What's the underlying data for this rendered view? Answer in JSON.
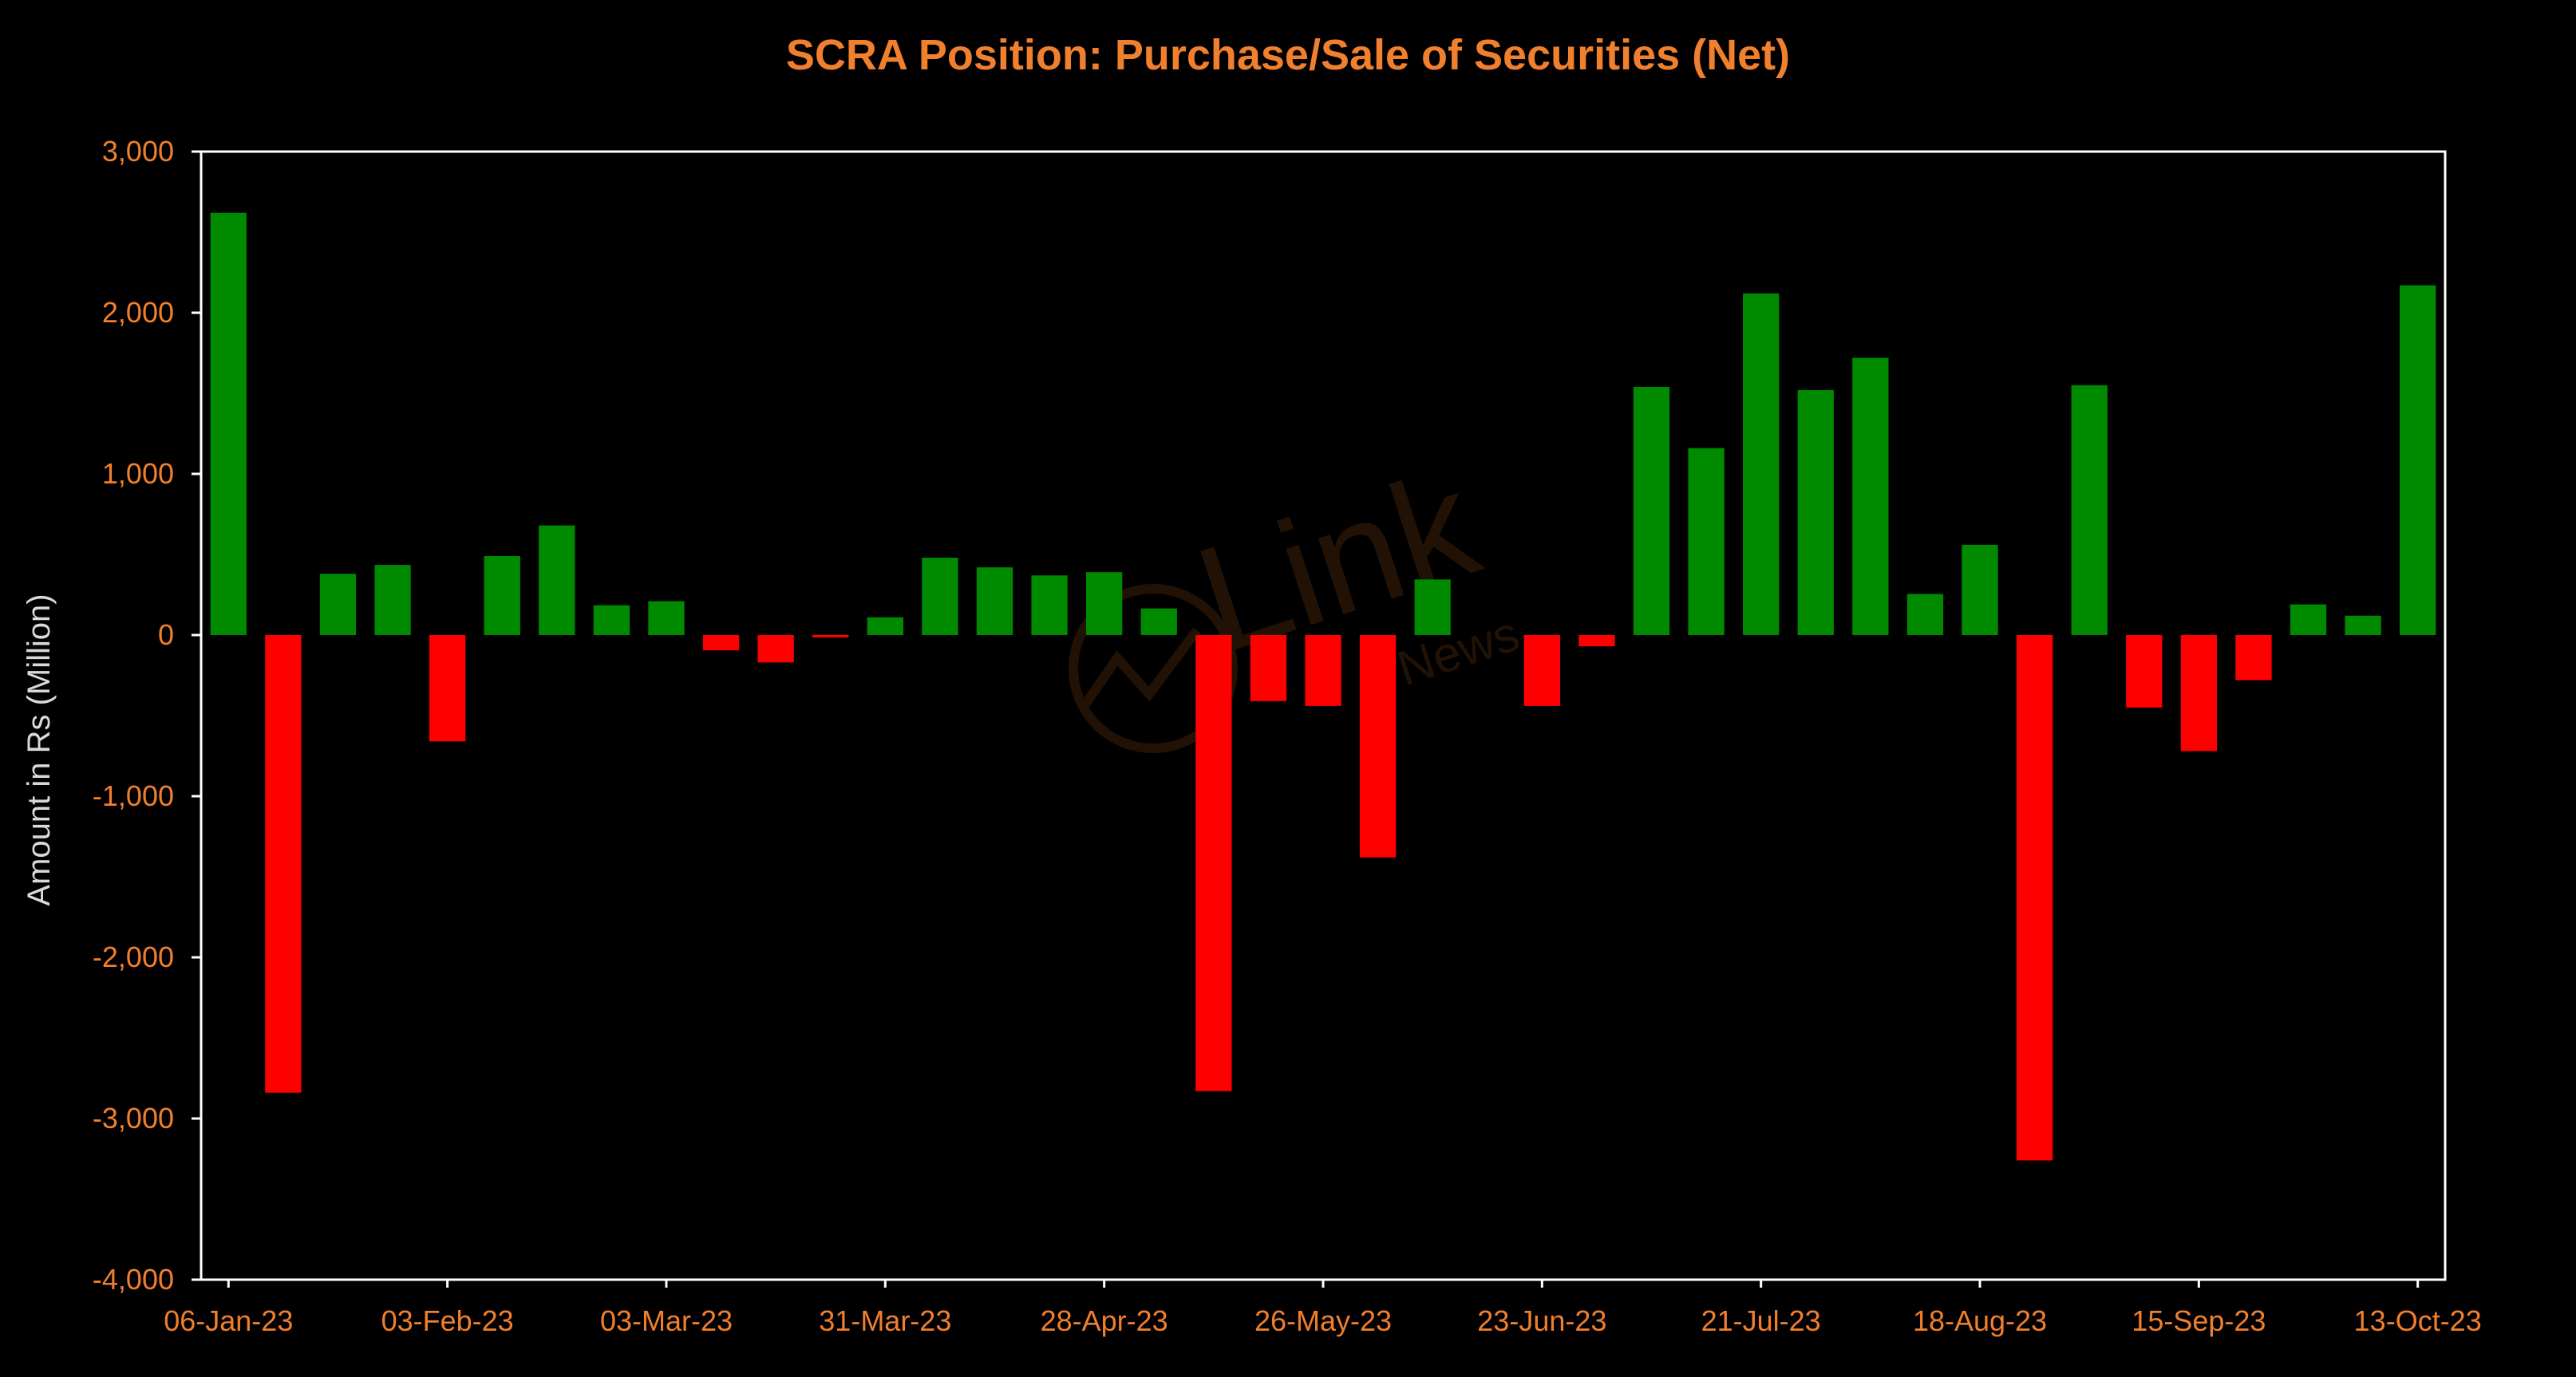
{
  "chart_data": {
    "type": "bar",
    "title": "SCRA Position: Purchase/Sale of Securities (Net)",
    "xlabel": "",
    "ylabel": "Amount in Rs (Million)",
    "ylim": [
      -4000,
      3000
    ],
    "yticks": [
      3000,
      2000,
      1000,
      0,
      -1000,
      -2000,
      -3000,
      -4000
    ],
    "ytick_labels": [
      "3,000",
      "2,000",
      "1,000",
      "0",
      "-1,000",
      "-2,000",
      "-3,000",
      "-4,000"
    ],
    "x_tick_labels": [
      "06-Jan-23",
      "03-Feb-23",
      "03-Mar-23",
      "31-Mar-23",
      "28-Apr-23",
      "26-May-23",
      "23-Jun-23",
      "21-Jul-23",
      "18-Aug-23",
      "15-Sep-23",
      "13-Oct-23"
    ],
    "categories": [
      "06-Jan-23",
      "13-Jan-23",
      "20-Jan-23",
      "27-Jan-23",
      "03-Feb-23",
      "10-Feb-23",
      "17-Feb-23",
      "24-Feb-23",
      "03-Mar-23",
      "10-Mar-23",
      "17-Mar-23",
      "24-Mar-23",
      "31-Mar-23",
      "07-Apr-23",
      "14-Apr-23",
      "21-Apr-23",
      "28-Apr-23",
      "05-May-23",
      "12-May-23",
      "19-May-23",
      "26-May-23",
      "02-Jun-23",
      "09-Jun-23",
      "16-Jun-23",
      "23-Jun-23",
      "30-Jun-23",
      "07-Jul-23",
      "14-Jul-23",
      "21-Jul-23",
      "28-Jul-23",
      "04-Aug-23",
      "11-Aug-23",
      "18-Aug-23",
      "25-Aug-23",
      "01-Sep-23",
      "08-Sep-23",
      "15-Sep-23",
      "22-Sep-23",
      "29-Sep-23",
      "06-Oct-23",
      "13-Oct-23"
    ],
    "values": [
      2620,
      -2840,
      380,
      435,
      -660,
      490,
      680,
      185,
      210,
      -95,
      -170,
      -15,
      110,
      480,
      420,
      370,
      390,
      165,
      -2830,
      -410,
      -440,
      -1380,
      345,
      0,
      -440,
      -70,
      1540,
      1160,
      2120,
      1520,
      1720,
      255,
      560,
      -3260,
      1550,
      -450,
      -720,
      -280,
      190,
      120,
      2170
    ],
    "positive_color": "#008A00",
    "negative_color": "#FF0000",
    "grid": false,
    "legend": "none"
  }
}
